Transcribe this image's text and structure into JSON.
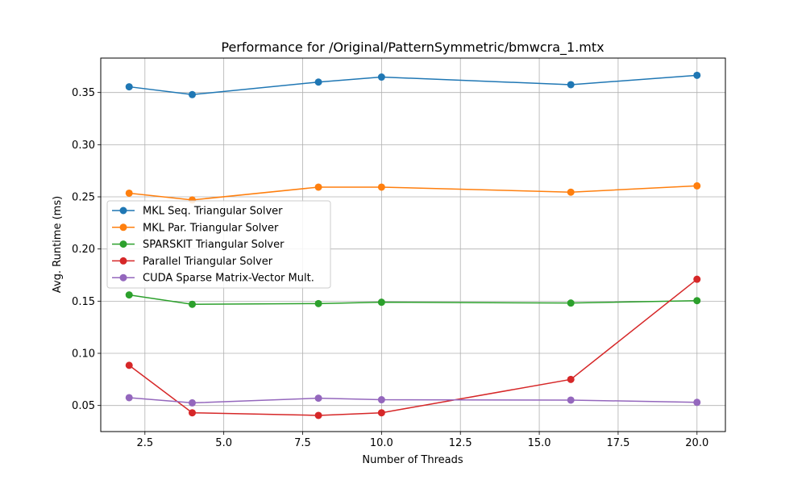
{
  "chart_data": {
    "type": "line",
    "title": "Performance for /Original/PatternSymmetric/bmwcra_1.mtx",
    "xlabel": "Number of Threads",
    "ylabel": "Avg. Runtime (ms)",
    "xlim": [
      1.1,
      20.9
    ],
    "ylim": [
      0.025,
      0.383
    ],
    "xticks": [
      2.5,
      5.0,
      7.5,
      10.0,
      12.5,
      15.0,
      17.5,
      20.0
    ],
    "xtick_labels": [
      "2.5",
      "5.0",
      "7.5",
      "10.0",
      "12.5",
      "15.0",
      "17.5",
      "20.0"
    ],
    "yticks": [
      0.05,
      0.1,
      0.15,
      0.2,
      0.25,
      0.3,
      0.35
    ],
    "ytick_labels": [
      "0.05",
      "0.10",
      "0.15",
      "0.20",
      "0.25",
      "0.30",
      "0.35"
    ],
    "grid": true,
    "legend_position": "center-left",
    "x": [
      2,
      4,
      8,
      10,
      16,
      20
    ],
    "series": [
      {
        "name": "MKL Seq. Triangular Solver",
        "color": "#1f77b4",
        "values": [
          0.3555,
          0.348,
          0.36,
          0.3648,
          0.3575,
          0.3665
        ]
      },
      {
        "name": "MKL Par. Triangular Solver",
        "color": "#ff7f0e",
        "values": [
          0.2535,
          0.247,
          0.2593,
          0.2593,
          0.2545,
          0.2605
        ]
      },
      {
        "name": "SPARSKIT Triangular Solver",
        "color": "#2ca02c",
        "values": [
          0.156,
          0.147,
          0.1477,
          0.149,
          0.1482,
          0.1505
        ]
      },
      {
        "name": "Parallel Triangular Solver",
        "color": "#d62728",
        "values": [
          0.0885,
          0.043,
          0.0405,
          0.043,
          0.075,
          0.171
        ]
      },
      {
        "name": "CUDA Sparse Matrix-Vector Mult.",
        "color": "#9467bd",
        "values": [
          0.0575,
          0.0525,
          0.057,
          0.0555,
          0.0552,
          0.053
        ]
      }
    ]
  }
}
